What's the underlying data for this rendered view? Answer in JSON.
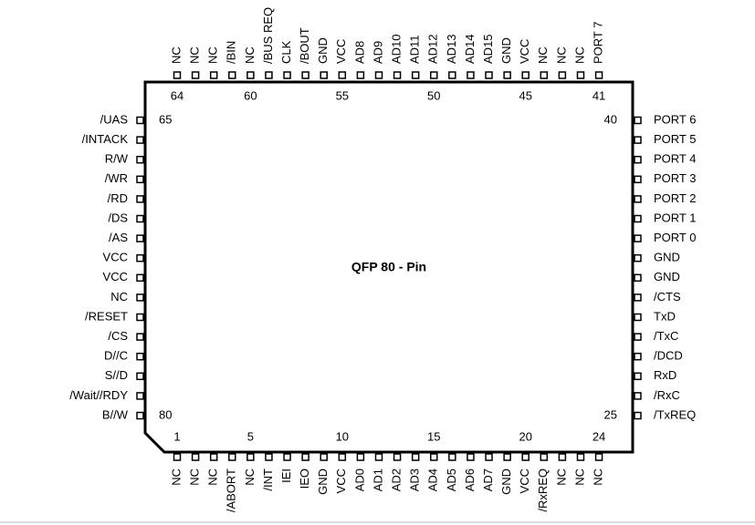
{
  "title": "QFP 80 - Pin",
  "top": {
    "pins": [
      "NC",
      "NC",
      "NC",
      "/BIN",
      "NC",
      "/BUS REQ",
      "CLK",
      "/BOUT",
      "GND",
      "VCC",
      "AD8",
      "AD9",
      "AD10",
      "AD11",
      "AD12",
      "AD13",
      "AD14",
      "AD15",
      "GND",
      "VCC",
      "NC",
      "NC",
      "NC",
      "PORT 7"
    ],
    "numbers": [
      64,
      60,
      55,
      50,
      45,
      41
    ]
  },
  "bottom": {
    "pins": [
      "NC",
      "NC",
      "NC",
      "/ABORT",
      "NC",
      "/INT",
      "IEI",
      "IEO",
      "GND",
      "VCC",
      "AD0",
      "AD1",
      "AD2",
      "AD3",
      "AD4",
      "AD5",
      "AD6",
      "AD7",
      "GND",
      "VCC",
      "/RxREQ",
      "NC",
      "NC",
      "NC"
    ],
    "numbers": [
      1,
      5,
      10,
      15,
      20,
      24
    ]
  },
  "left": {
    "pins": [
      "/UAS",
      "/INTACK",
      "R/W",
      "/WR",
      "/RD",
      "/DS",
      "/AS",
      "VCC",
      "VCC",
      "NC",
      "/RESET",
      "/CS",
      "D//C",
      "S//D",
      "/Wait//RDY",
      "B//W"
    ],
    "numbers": [
      65,
      80
    ]
  },
  "right": {
    "pins": [
      "PORT 6",
      "PORT 5",
      "PORT 4",
      "PORT 3",
      "PORT 2",
      "PORT 1",
      "PORT 0",
      "GND",
      "GND",
      "/CTS",
      "TxD",
      "/TxC",
      "/DCD",
      "RxD",
      "/RxC",
      "/TxREQ"
    ],
    "numbers": [
      40,
      25
    ]
  }
}
